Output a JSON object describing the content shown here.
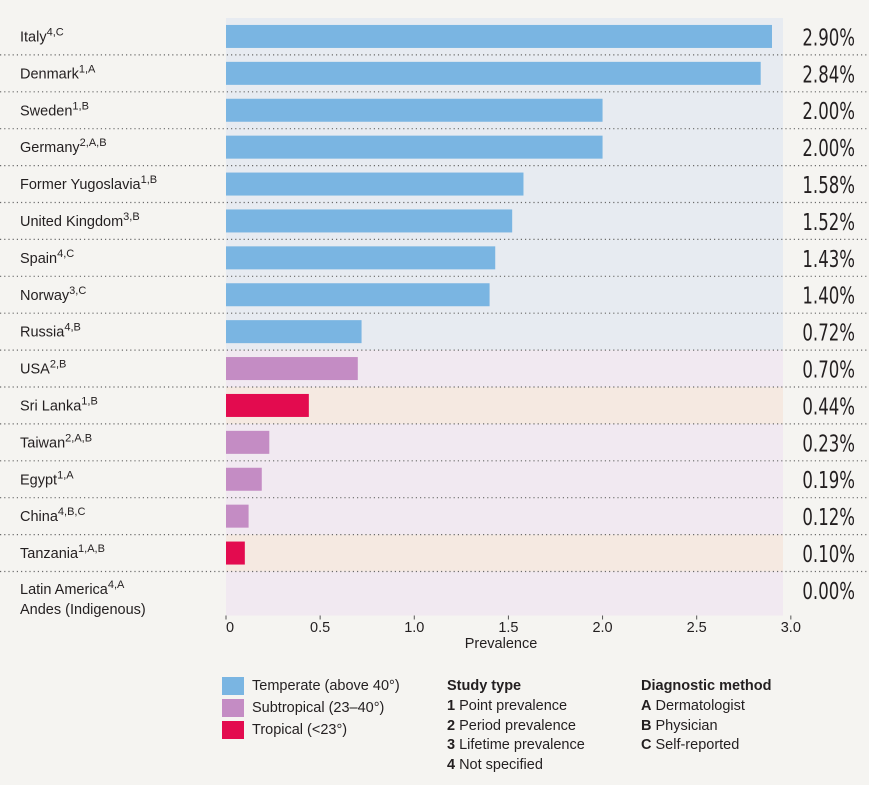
{
  "chart_data": {
    "type": "bar",
    "orientation": "horizontal",
    "xlabel": "Prevalence",
    "xlim": [
      0,
      3.1
    ],
    "xticks": [
      "0",
      "0.5",
      "1.0",
      "1.5",
      "2.0",
      "2.5",
      "3.0"
    ],
    "tick_values": [
      0,
      0.5,
      1.0,
      1.5,
      2.0,
      2.5,
      3.0
    ],
    "climate_colors": {
      "temperate": "#7ab5e2",
      "subtropical": "#c48cc4",
      "tropical": "#e30b4f"
    },
    "band_colors": {
      "temperate": "#e7ebf1",
      "subtropical": "#f1e9f1",
      "tropical": "#f5e9e1"
    },
    "rows": [
      {
        "country": "Italy",
        "sup": "4,C",
        "value": 2.9,
        "label": "2.90%",
        "climate": "temperate"
      },
      {
        "country": "Denmark",
        "sup": "1,A",
        "value": 2.84,
        "label": "2.84%",
        "climate": "temperate"
      },
      {
        "country": "Sweden",
        "sup": "1,B",
        "value": 2.0,
        "label": "2.00%",
        "climate": "temperate"
      },
      {
        "country": "Germany",
        "sup": "2,A,B",
        "value": 2.0,
        "label": "2.00%",
        "climate": "temperate"
      },
      {
        "country": "Former Yugoslavia",
        "sup": "1,B",
        "value": 1.58,
        "label": "1.58%",
        "climate": "temperate"
      },
      {
        "country": "United Kingdom",
        "sup": "3,B",
        "value": 1.52,
        "label": "1.52%",
        "climate": "temperate"
      },
      {
        "country": "Spain",
        "sup": "4,C",
        "value": 1.43,
        "label": "1.43%",
        "climate": "temperate"
      },
      {
        "country": "Norway",
        "sup": "3,C",
        "value": 1.4,
        "label": "1.40%",
        "climate": "temperate"
      },
      {
        "country": "Russia",
        "sup": "4,B",
        "value": 0.72,
        "label": "0.72%",
        "climate": "temperate"
      },
      {
        "country": "USA",
        "sup": "2,B",
        "value": 0.7,
        "label": "0.70%",
        "climate": "subtropical"
      },
      {
        "country": "Sri Lanka",
        "sup": "1,B",
        "value": 0.44,
        "label": "0.44%",
        "climate": "tropical"
      },
      {
        "country": "Taiwan",
        "sup": "2,A,B",
        "value": 0.23,
        "label": "0.23%",
        "climate": "subtropical"
      },
      {
        "country": "Egypt",
        "sup": "1,A",
        "value": 0.19,
        "label": "0.19%",
        "climate": "subtropical"
      },
      {
        "country": "China",
        "sup": "4,B,C",
        "value": 0.12,
        "label": "0.12%",
        "climate": "subtropical"
      },
      {
        "country": "Tanzania",
        "sup": "1,A,B",
        "value": 0.1,
        "label": "0.10%",
        "climate": "tropical"
      },
      {
        "country": "Latin America",
        "sup": "4,A",
        "country_line2": "Andes (Indigenous)",
        "value": 0.0,
        "label": "0.00%",
        "climate": "subtropical"
      }
    ]
  },
  "legend": {
    "climate": [
      {
        "label": "Temperate (above 40°)",
        "color": "#7ab5e2"
      },
      {
        "label": "Subtropical (23–40°)",
        "color": "#c48cc4"
      },
      {
        "label": "Tropical (<23°)",
        "color": "#e30b4f"
      }
    ],
    "study_type": {
      "title": "Study type",
      "items": [
        {
          "key": "1",
          "label": "Point prevalence"
        },
        {
          "key": "2",
          "label": "Period prevalence"
        },
        {
          "key": "3",
          "label": "Lifetime prevalence"
        },
        {
          "key": "4",
          "label": "Not specified"
        }
      ]
    },
    "diagnostic_method": {
      "title": "Diagnostic method",
      "items": [
        {
          "key": "A",
          "label": "Dermatologist"
        },
        {
          "key": "B",
          "label": "Physician"
        },
        {
          "key": "C",
          "label": "Self-reported"
        }
      ]
    }
  }
}
